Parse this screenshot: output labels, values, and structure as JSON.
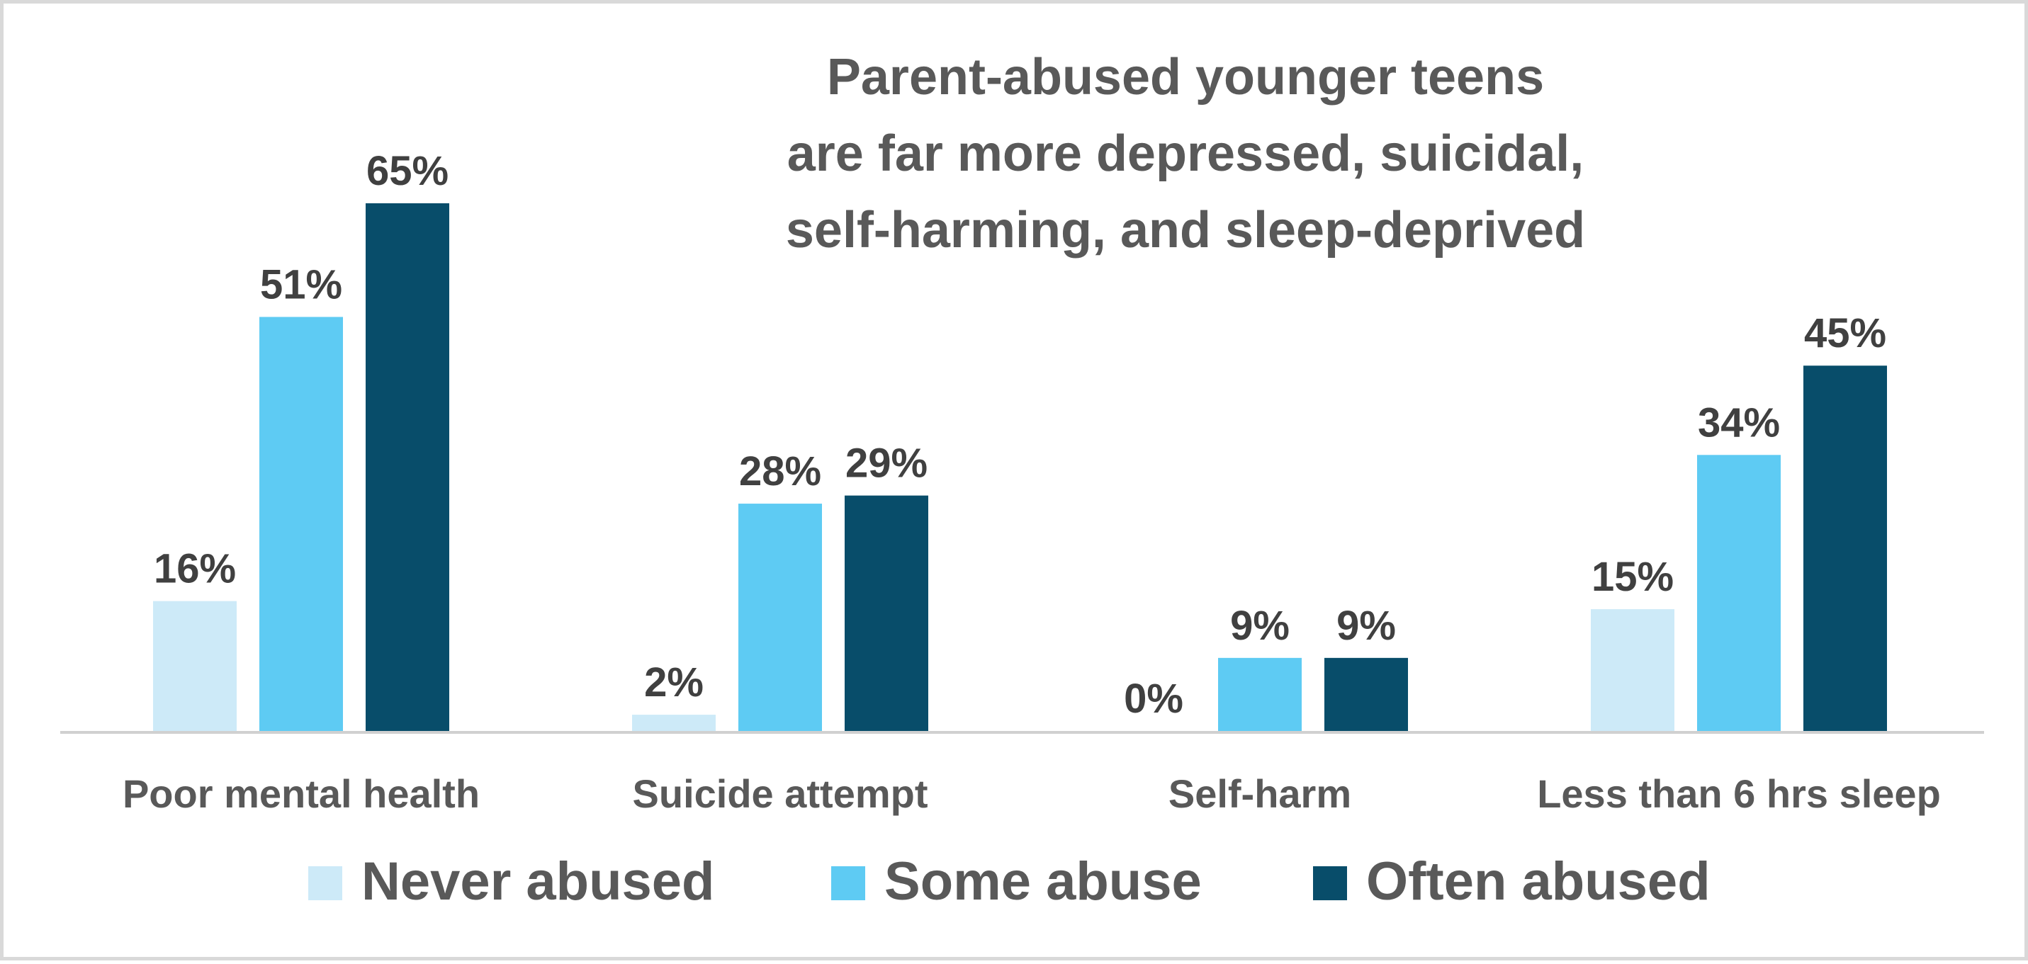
{
  "chart_data": {
    "type": "bar",
    "title": "Parent-abused younger teens are far more depressed, suicidal, self-harming, and sleep-deprived",
    "title_lines": [
      "Parent-abused younger teens",
      "are far more depressed, suicidal,",
      "self-harming, and sleep-deprived"
    ],
    "categories": [
      "Poor mental health",
      "Suicide attempt",
      "Self-harm",
      "Less than 6 hrs sleep"
    ],
    "series": [
      {
        "name": "Never abused",
        "color": "#cdeaf8",
        "values": [
          16,
          2,
          0,
          15
        ],
        "labels": [
          "16%",
          "2%",
          "0%",
          "15%"
        ]
      },
      {
        "name": "Some abuse",
        "color": "#5ecbf3",
        "values": [
          51,
          28,
          9,
          34
        ],
        "labels": [
          "51%",
          "28%",
          "9%",
          "34%"
        ]
      },
      {
        "name": "Often abused",
        "color": "#084d6a",
        "values": [
          65,
          29,
          9,
          45
        ],
        "labels": [
          "65%",
          "29%",
          "9%",
          "45%"
        ]
      }
    ],
    "ylim": [
      0,
      65
    ],
    "unit": "%",
    "legend_position": "bottom",
    "grid": false,
    "axis_line_color": "#d0d0d0"
  }
}
